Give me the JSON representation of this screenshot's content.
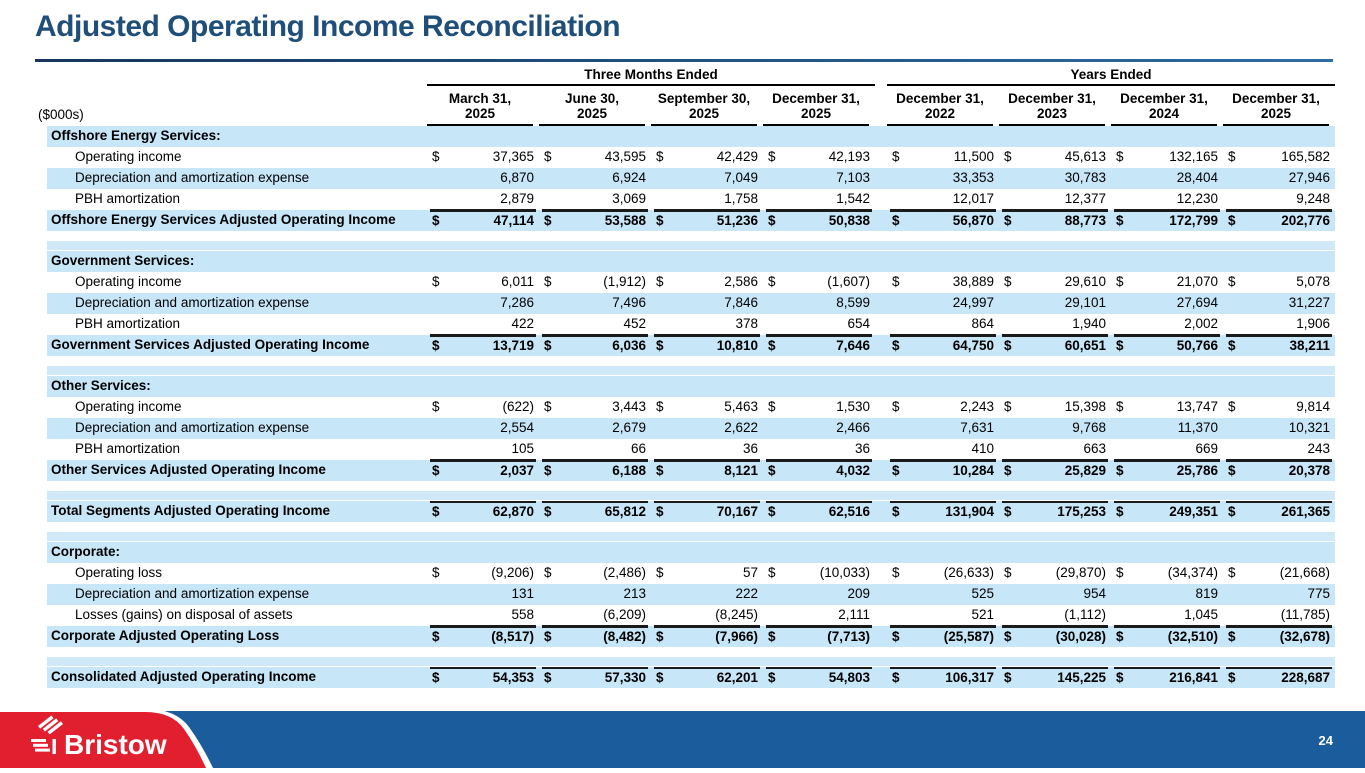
{
  "slide": {
    "title": "Adjusted Operating Income Reconciliation",
    "page_number": "24",
    "brand": "Bristow",
    "colors": {
      "accent_navy": "#1F4E79",
      "stripe_blue": "#C7E6F8",
      "footer_blue": "#1A5C9C",
      "brand_red": "#E21F2F"
    }
  },
  "table": {
    "units_label": "($000s)",
    "dollar_sign": "$",
    "group_headers": [
      {
        "label": "Three Months Ended",
        "span": 4
      },
      {
        "label": "Years Ended",
        "span": 4
      }
    ],
    "columns": [
      {
        "line1": "March 31,",
        "line2": "2025"
      },
      {
        "line1": "June 30,",
        "line2": "2025"
      },
      {
        "line1": "September 30,",
        "line2": "2025"
      },
      {
        "line1": "December 31,",
        "line2": "2025"
      },
      {
        "line1": "December 31,",
        "line2": "2022"
      },
      {
        "line1": "December 31,",
        "line2": "2023"
      },
      {
        "line1": "December 31,",
        "line2": "2024"
      },
      {
        "line1": "December 31,",
        "line2": "2025"
      }
    ],
    "rows": [
      {
        "type": "section",
        "label": "Offshore Energy Services:"
      },
      {
        "type": "data",
        "label": "Operating income",
        "dollar": true,
        "shaded": false,
        "values": [
          "37,365",
          "43,595",
          "42,429",
          "42,193",
          "11,500",
          "45,613",
          "132,165",
          "165,582"
        ]
      },
      {
        "type": "data",
        "label": "Depreciation and amortization expense",
        "dollar": false,
        "shaded": true,
        "values": [
          "6,870",
          "6,924",
          "7,049",
          "7,103",
          "33,353",
          "30,783",
          "28,404",
          "27,946"
        ]
      },
      {
        "type": "data",
        "label": "PBH amortization",
        "dollar": false,
        "shaded": false,
        "underline": true,
        "values": [
          "2,879",
          "3,069",
          "1,758",
          "1,542",
          "12,017",
          "12,377",
          "12,230",
          "9,248"
        ]
      },
      {
        "type": "subtotal",
        "label": "Offshore Energy Services Adjusted Operating Income",
        "dollar": true,
        "values": [
          "47,114",
          "53,588",
          "51,236",
          "50,838",
          "56,870",
          "88,773",
          "172,799",
          "202,776"
        ]
      },
      {
        "type": "spacer"
      },
      {
        "type": "section",
        "label": "Government Services:"
      },
      {
        "type": "data",
        "label": "Operating income",
        "dollar": true,
        "shaded": false,
        "values": [
          "6,011",
          "(1,912)",
          "2,586",
          "(1,607)",
          "38,889",
          "29,610",
          "21,070",
          "5,078"
        ]
      },
      {
        "type": "data",
        "label": "Depreciation and amortization expense",
        "dollar": false,
        "shaded": true,
        "values": [
          "7,286",
          "7,496",
          "7,846",
          "8,599",
          "24,997",
          "29,101",
          "27,694",
          "31,227"
        ]
      },
      {
        "type": "data",
        "label": "PBH amortization",
        "dollar": false,
        "shaded": false,
        "underline": true,
        "values": [
          "422",
          "452",
          "378",
          "654",
          "864",
          "1,940",
          "2,002",
          "1,906"
        ]
      },
      {
        "type": "subtotal",
        "label": "Government Services Adjusted Operating Income",
        "dollar": true,
        "values": [
          "13,719",
          "6,036",
          "10,810",
          "7,646",
          "64,750",
          "60,651",
          "50,766",
          "38,211"
        ]
      },
      {
        "type": "spacer"
      },
      {
        "type": "section",
        "label": "Other Services:"
      },
      {
        "type": "data",
        "label": "Operating income",
        "dollar": true,
        "shaded": false,
        "values": [
          "(622)",
          "3,443",
          "5,463",
          "1,530",
          "2,243",
          "15,398",
          "13,747",
          "9,814"
        ]
      },
      {
        "type": "data",
        "label": "Depreciation and amortization expense",
        "dollar": false,
        "shaded": true,
        "values": [
          "2,554",
          "2,679",
          "2,622",
          "2,466",
          "7,631",
          "9,768",
          "11,370",
          "10,321"
        ]
      },
      {
        "type": "data",
        "label": "PBH amortization",
        "dollar": false,
        "shaded": false,
        "underline": true,
        "values": [
          "105",
          "66",
          "36",
          "36",
          "410",
          "663",
          "669",
          "243"
        ]
      },
      {
        "type": "subtotal",
        "label": "Other Services Adjusted Operating Income",
        "dollar": true,
        "values": [
          "2,037",
          "6,188",
          "8,121",
          "4,032",
          "10,284",
          "25,829",
          "25,786",
          "20,378"
        ]
      },
      {
        "type": "spacer"
      },
      {
        "type": "subtotal",
        "label": "Total Segments Adjusted Operating Income",
        "dollar": true,
        "values": [
          "62,870",
          "65,812",
          "70,167",
          "62,516",
          "131,904",
          "175,253",
          "249,351",
          "261,365"
        ]
      },
      {
        "type": "spacer"
      },
      {
        "type": "section",
        "label": "Corporate:"
      },
      {
        "type": "data",
        "label": "Operating loss",
        "dollar": true,
        "shaded": false,
        "values": [
          "(9,206)",
          "(2,486)",
          "57",
          "(10,033)",
          "(26,633)",
          "(29,870)",
          "(34,374)",
          "(21,668)"
        ]
      },
      {
        "type": "data",
        "label": "Depreciation and amortization expense",
        "dollar": false,
        "shaded": true,
        "values": [
          "131",
          "213",
          "222",
          "209",
          "525",
          "954",
          "819",
          "775"
        ]
      },
      {
        "type": "data",
        "label": "Losses (gains) on disposal of assets",
        "dollar": false,
        "shaded": false,
        "underline": true,
        "values": [
          "558",
          "(6,209)",
          "(8,245)",
          "2,111",
          "521",
          "(1,112)",
          "1,045",
          "(11,785)"
        ]
      },
      {
        "type": "subtotal",
        "label": "Corporate Adjusted Operating Loss",
        "dollar": true,
        "values": [
          "(8,517)",
          "(8,482)",
          "(7,966)",
          "(7,713)",
          "(25,587)",
          "(30,028)",
          "(32,510)",
          "(32,678)"
        ]
      },
      {
        "type": "spacer"
      },
      {
        "type": "subtotal",
        "label": "Consolidated Adjusted Operating Income",
        "dollar": true,
        "values": [
          "54,353",
          "57,330",
          "62,201",
          "54,803",
          "106,317",
          "145,225",
          "216,841",
          "228,687"
        ]
      }
    ]
  }
}
